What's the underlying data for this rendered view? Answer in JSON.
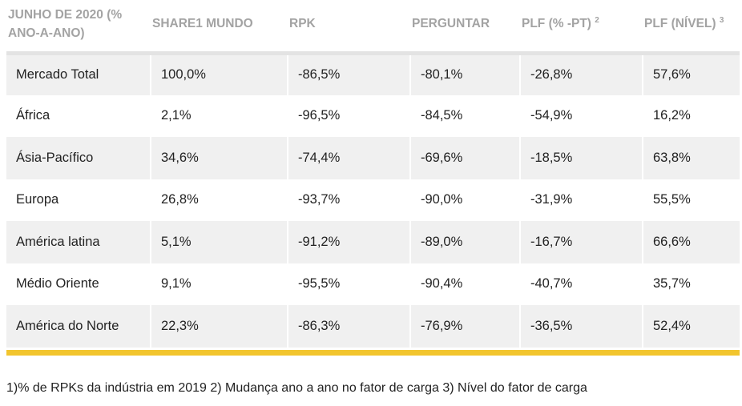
{
  "table": {
    "headers": [
      {
        "label": "JUNHO DE 2020 (% ANO-A-ANO)",
        "sup": ""
      },
      {
        "label": "SHARE1 MUNDO",
        "sup": ""
      },
      {
        "label": "RPK",
        "sup": ""
      },
      {
        "label": "PERGUNTAR",
        "sup": ""
      },
      {
        "label": "PLF (% -PT)",
        "sup": "2"
      },
      {
        "label": "PLF (NÍVEL)",
        "sup": "3"
      }
    ],
    "rows": [
      [
        "Mercado Total",
        "100,0%",
        "-86,5%",
        "-80,1%",
        "-26,8%",
        "57,6%"
      ],
      [
        "África",
        "2,1%",
        "-96,5%",
        "-84,5%",
        "-54,9%",
        "16,2%"
      ],
      [
        "Ásia-Pacífico",
        "34,6%",
        "-74,4%",
        "-69,6%",
        "-18,5%",
        "63,8%"
      ],
      [
        "Europa",
        "26,8%",
        "-93,7%",
        "-90,0%",
        "-31,9%",
        "55,5%"
      ],
      [
        "América latina",
        "5,1%",
        "-91,2%",
        "-89,0%",
        "-16,7%",
        "66,6%"
      ],
      [
        "Médio Oriente",
        "9,1%",
        "-95,5%",
        "-90,4%",
        "-40,7%",
        "35,7%"
      ],
      [
        "América do Norte",
        "22,3%",
        "-86,3%",
        "-76,9%",
        "-36,5%",
        "52,4%"
      ]
    ]
  },
  "footnote": "1)% de RPKs da indústria em 2019 2) Mudança ano a ano no fator de carga 3) Nível do fator de carga",
  "colors": {
    "header_text": "#a3a3a3",
    "stripe": "#f0f0f0",
    "accent_bar": "#f2c52e"
  }
}
